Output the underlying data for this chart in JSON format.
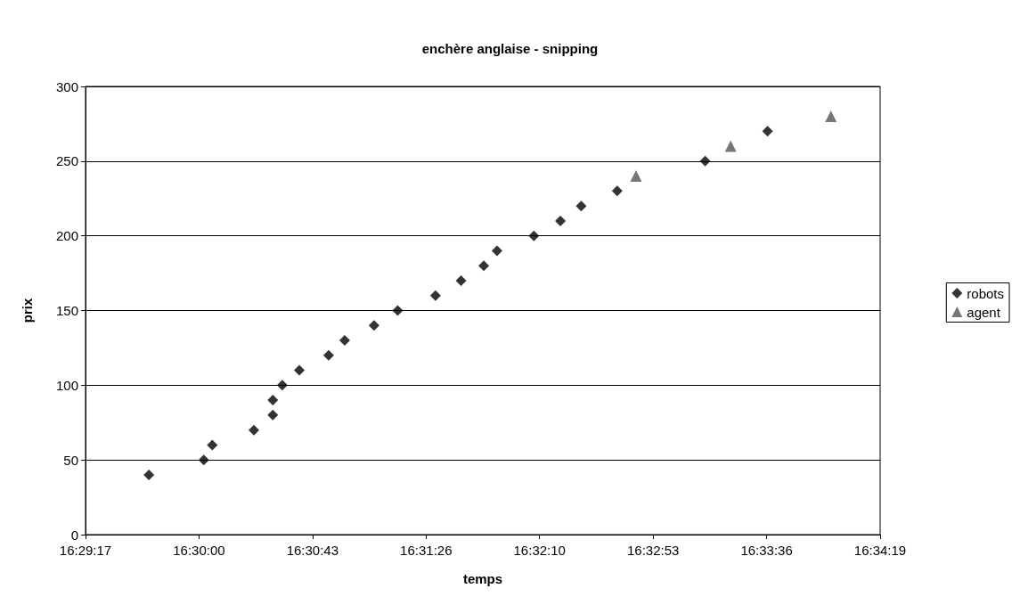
{
  "chart_data": {
    "type": "scatter",
    "title": "enchère anglaise - snipping",
    "xlabel": "temps",
    "ylabel": "prix",
    "xlim": [
      16.488,
      16.572
    ],
    "xticks": [
      {
        "value": 16.488,
        "label": "16:29:17"
      },
      {
        "value": 16.5,
        "label": "16:30:00"
      },
      {
        "value": 16.512,
        "label": "16:30:43"
      },
      {
        "value": 16.524,
        "label": "16:31:26"
      },
      {
        "value": 16.536,
        "label": "16:32:10"
      },
      {
        "value": 16.548,
        "label": "16:32:53"
      },
      {
        "value": 16.56,
        "label": "16:33:36"
      },
      {
        "value": 16.572,
        "label": "16:34:19"
      }
    ],
    "ylim": [
      0,
      300
    ],
    "yticks": [
      0,
      50,
      100,
      150,
      200,
      250,
      300
    ],
    "grid": "y",
    "legend": "right",
    "series": [
      {
        "name": "robots",
        "color": "#000000",
        "marker": "diamond",
        "x": [
          16.4947,
          16.5005,
          16.5014,
          16.5058,
          16.5078,
          16.5078,
          16.5088,
          16.5106,
          16.5137,
          16.5154,
          16.5185,
          16.521,
          16.525,
          16.5277,
          16.5301,
          16.5315,
          16.5354,
          16.5382,
          16.5404,
          16.5442,
          16.5535,
          16.5601
        ],
        "values": [
          40,
          50,
          60,
          70,
          80,
          90,
          100,
          110,
          120,
          130,
          140,
          150,
          160,
          170,
          180,
          190,
          200,
          210,
          220,
          230,
          250,
          270
        ]
      },
      {
        "name": "agent",
        "color": "#555555",
        "marker": "triangle",
        "x": [
          16.5462,
          16.5562,
          16.5668
        ],
        "values": [
          240,
          260,
          280
        ]
      }
    ]
  }
}
